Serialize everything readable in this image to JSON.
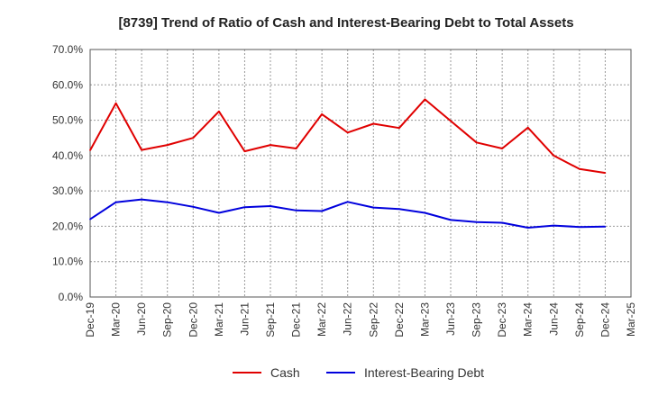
{
  "chart_data": {
    "type": "line",
    "title": "[8739]  Trend of Ratio of Cash and Interest-Bearing Debt to Total Assets",
    "xlabel": "",
    "ylabel": "",
    "x": [
      "Dec-19",
      "Mar-20",
      "Jun-20",
      "Sep-20",
      "Dec-20",
      "Mar-21",
      "Jun-21",
      "Sep-21",
      "Dec-21",
      "Mar-22",
      "Jun-22",
      "Sep-22",
      "Dec-22",
      "Mar-23",
      "Jun-23",
      "Sep-23",
      "Dec-23",
      "Mar-24",
      "Jun-24",
      "Sep-24",
      "Dec-24",
      "Mar-25"
    ],
    "ylim": [
      0,
      70
    ],
    "yticks": [
      "0.0%",
      "10.0%",
      "20.0%",
      "30.0%",
      "40.0%",
      "50.0%",
      "60.0%",
      "70.0%"
    ],
    "grid": true,
    "legend": "bottom",
    "series": [
      {
        "name": "Cash",
        "color": "#e00000",
        "values": [
          41.5,
          54.8,
          41.6,
          43.0,
          45.0,
          52.5,
          41.2,
          43.0,
          42.0,
          51.7,
          46.5,
          49.0,
          47.8,
          55.9,
          49.8,
          43.7,
          42.0,
          47.9,
          40.0,
          36.2,
          35.1,
          null
        ]
      },
      {
        "name": "Interest-Bearing Debt",
        "color": "#0000dd",
        "values": [
          22.0,
          26.8,
          27.6,
          26.8,
          25.5,
          23.8,
          25.4,
          25.7,
          24.5,
          24.3,
          26.9,
          25.3,
          24.9,
          23.8,
          21.8,
          21.2,
          21.0,
          19.6,
          20.2,
          19.8,
          19.9,
          null
        ]
      }
    ]
  }
}
